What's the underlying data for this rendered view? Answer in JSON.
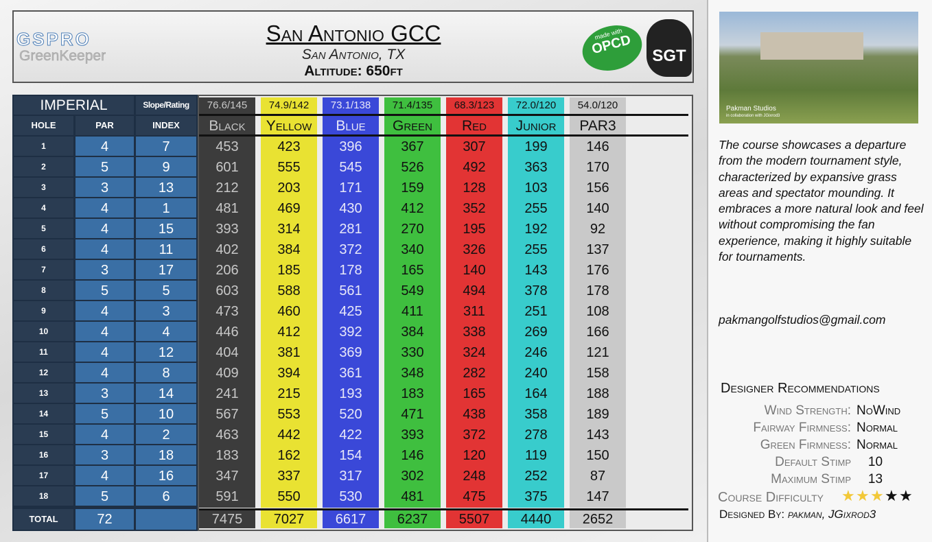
{
  "header": {
    "logo": "GSPRO",
    "logo_sub": "GreenKeeper",
    "title": "San Antonio GCC",
    "location": "San Antonio, TX",
    "altitude": "Altitude: 650ft",
    "badge_1_top": "made with",
    "badge_1": "OPCD",
    "badge_2": "SGT"
  },
  "table": {
    "system": "IMPERIAL",
    "slope_label": "Slope/Rating",
    "col_hole": "HOLE",
    "col_par": "PAR",
    "col_index": "INDEX",
    "total_label": "TOTAL",
    "holes": [
      1,
      2,
      3,
      4,
      5,
      6,
      7,
      8,
      9,
      10,
      11,
      12,
      13,
      14,
      15,
      16,
      17,
      18
    ],
    "par": [
      4,
      5,
      3,
      4,
      4,
      4,
      3,
      5,
      4,
      4,
      4,
      4,
      3,
      5,
      4,
      3,
      4,
      5
    ],
    "index": [
      7,
      9,
      13,
      1,
      15,
      11,
      17,
      5,
      3,
      4,
      12,
      8,
      14,
      10,
      2,
      18,
      16,
      6
    ],
    "par_total": 72,
    "tees": [
      {
        "name": "Black",
        "rating": "76.6/145",
        "color": "#3c3c3c",
        "text_color": "#c8c8c8",
        "rating_bg": "#3c3c3c",
        "yards": [
          453,
          601,
          212,
          481,
          393,
          402,
          206,
          603,
          473,
          446,
          404,
          409,
          241,
          567,
          463,
          183,
          347,
          591
        ],
        "total": 7475
      },
      {
        "name": "Yellow",
        "rating": "74.9/142",
        "color": "#e9e232",
        "text_color": "#111111",
        "rating_bg": "#e9e232",
        "yards": [
          423,
          555,
          203,
          469,
          314,
          384,
          185,
          588,
          460,
          412,
          381,
          394,
          215,
          553,
          442,
          162,
          337,
          550
        ],
        "total": 7027
      },
      {
        "name": "Blue",
        "rating": "73.1/138",
        "color": "#3a48d8",
        "text_color": "#e8e8f8",
        "rating_bg": "#3a48d8",
        "yards": [
          396,
          545,
          171,
          430,
          281,
          372,
          178,
          561,
          425,
          392,
          369,
          361,
          193,
          520,
          422,
          154,
          317,
          530
        ],
        "total": 6617
      },
      {
        "name": "Green",
        "rating": "71.4/135",
        "color": "#3fbf3f",
        "text_color": "#111111",
        "rating_bg": "#3fbf3f",
        "yards": [
          367,
          526,
          159,
          412,
          270,
          340,
          165,
          549,
          411,
          384,
          330,
          348,
          183,
          471,
          393,
          146,
          302,
          481
        ],
        "total": 6237
      },
      {
        "name": "Red",
        "rating": "68.3/123",
        "color": "#e23434",
        "text_color": "#111111",
        "rating_bg": "#e23434",
        "yards": [
          307,
          492,
          128,
          352,
          195,
          326,
          140,
          494,
          311,
          338,
          324,
          282,
          165,
          438,
          372,
          120,
          248,
          475
        ],
        "total": 5507
      },
      {
        "name": "Junior",
        "rating": "72.0/120",
        "color": "#38cccc",
        "text_color": "#111111",
        "rating_bg": "#38cccc",
        "yards": [
          199,
          363,
          103,
          255,
          192,
          255,
          143,
          378,
          251,
          269,
          246,
          240,
          164,
          358,
          278,
          119,
          252,
          375
        ],
        "total": 4440
      },
      {
        "name": "PAR3",
        "rating": "54.0/120",
        "color": "#c9c9c9",
        "text_color": "#111111",
        "rating_bg": "#c9c9c9",
        "yards": [
          146,
          170,
          156,
          140,
          92,
          137,
          176,
          178,
          108,
          166,
          121,
          158,
          188,
          189,
          143,
          150,
          87,
          147
        ],
        "total": 2652
      }
    ]
  },
  "side": {
    "image_caption": "Pakman Studios",
    "image_caption_sub": "in collaboration with JGixrod3",
    "description": "The course showcases a departure from the modern tournament style, characterized by expansive grass areas and spectator mounding. It embraces a more natural look and feel without compromising the fan experience, making it highly suitable for tournaments.",
    "email": "pakmangolfstudios@gmail.com",
    "rec_title": "Designer Recommendations",
    "recs": [
      {
        "label": "Wind Strength:",
        "value": "NoWind"
      },
      {
        "label": "Fairway Firmness:",
        "value": "Normal"
      },
      {
        "label": "Green Firmness:",
        "value": "Normal"
      },
      {
        "label": "Default Stimp",
        "value": 10
      },
      {
        "label": "Maximum Stimp",
        "value": 13
      }
    ],
    "difficulty_label": "Course Difficulty",
    "difficulty": 3,
    "difficulty_max": 5,
    "designed_label": "Designed By:",
    "designed_by": "pakman, JGixrod3"
  }
}
